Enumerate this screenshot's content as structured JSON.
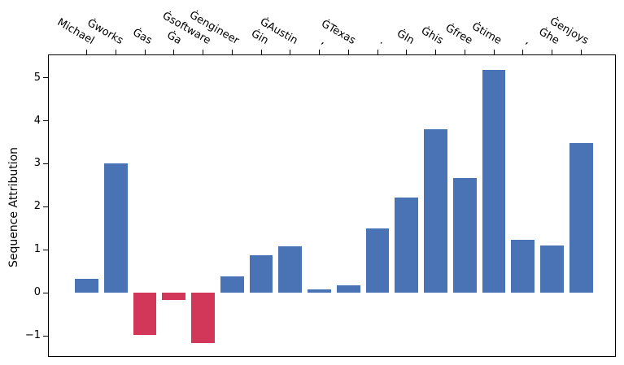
{
  "chart_data": {
    "type": "bar",
    "ylabel": "Sequence Attribution",
    "xlabel": "",
    "x_axis_position": "top",
    "x_tick_label_rotation_deg": -30,
    "grid": false,
    "legend": null,
    "categories": [
      "Michael",
      "Ġworks",
      "Ġas",
      "Ġa",
      "Ġsoftware",
      "Ġengineer",
      "Ġin",
      "ĠAustin",
      ",",
      "ĠTexas",
      ".",
      "ĠIn",
      "Ġhis",
      "Ġfree",
      "Ġtime",
      ",",
      "Ġhe",
      "Ġenjoys"
    ],
    "values": [
      0.32,
      3.0,
      -0.98,
      -0.16,
      -1.16,
      0.39,
      0.88,
      1.08,
      0.08,
      0.18,
      1.5,
      2.22,
      3.81,
      2.66,
      5.18,
      1.24,
      1.1,
      3.48
    ],
    "yticks": [
      -1,
      0,
      1,
      2,
      3,
      4,
      5
    ],
    "ytick_labels": [
      "−1",
      "0",
      "1",
      "2",
      "3",
      "4",
      "5"
    ],
    "ylim": [
      -1.47,
      5.54
    ],
    "colors": {
      "positive": "#4a73b5",
      "negative": "#d23659",
      "axis": "#000000",
      "text": "#000000"
    }
  }
}
